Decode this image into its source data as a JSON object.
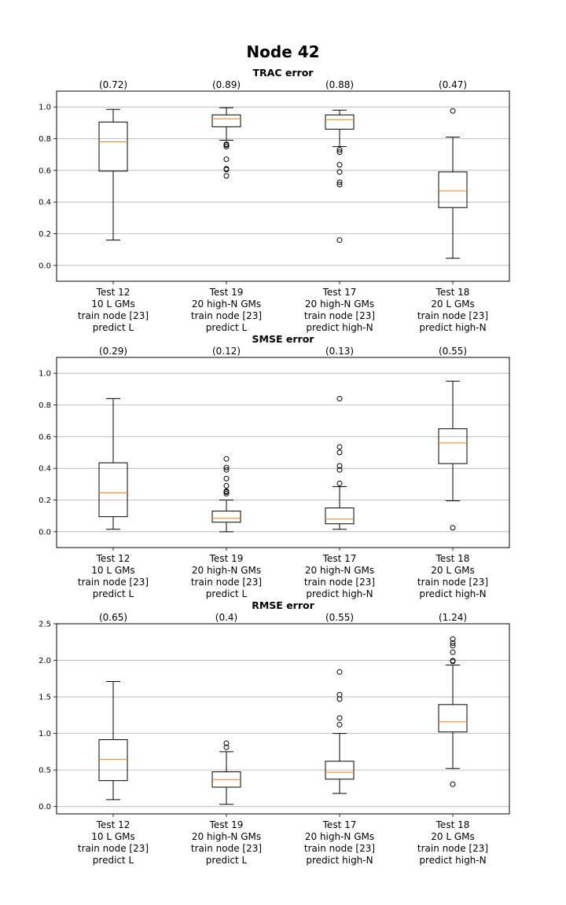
{
  "figure": {
    "title": "Node 42"
  },
  "colors": {
    "median": "#ff7f0e",
    "box": "#000000",
    "grid": "#b0b0b0",
    "axes": "#000000"
  },
  "chart_data": [
    {
      "type": "box",
      "title": "TRAC error",
      "xlabel": "",
      "ylabel": "",
      "ylim": [
        -0.1,
        1.1
      ],
      "yticks": [
        0.0,
        0.2,
        0.4,
        0.6,
        0.8,
        1.0
      ],
      "ytick_labels": [
        "0.0",
        "0.2",
        "0.4",
        "0.6",
        "0.8",
        "1.0"
      ],
      "grid": "y",
      "categories": [
        [
          "Test 12",
          "10 L GMs",
          "train node [23]",
          "predict L"
        ],
        [
          "Test 19",
          "20 high-N GMs",
          "train node [23]",
          "predict L"
        ],
        [
          "Test 17",
          "20 high-N GMs",
          "train node [23]",
          "predict high-N"
        ],
        [
          "Test 18",
          "20 L GMs",
          "train node [23]",
          "predict high-N"
        ]
      ],
      "mean_labels": [
        "(0.72)",
        "(0.89)",
        "(0.88)",
        "(0.47)"
      ],
      "boxes": [
        {
          "whisker_low": 0.16,
          "q1": 0.595,
          "median": 0.78,
          "q3": 0.905,
          "whisker_high": 0.985,
          "outliers": []
        },
        {
          "whisker_low": 0.79,
          "q1": 0.875,
          "median": 0.925,
          "q3": 0.95,
          "whisker_high": 0.995,
          "outliers": [
            0.565,
            0.605,
            0.61,
            0.67,
            0.75,
            0.76,
            0.765
          ]
        },
        {
          "whisker_low": 0.75,
          "q1": 0.86,
          "median": 0.92,
          "q3": 0.95,
          "whisker_high": 0.98,
          "outliers": [
            0.16,
            0.51,
            0.525,
            0.59,
            0.635,
            0.715,
            0.73
          ]
        },
        {
          "whisker_low": 0.045,
          "q1": 0.365,
          "median": 0.47,
          "q3": 0.59,
          "whisker_high": 0.81,
          "outliers": [
            0.975
          ]
        }
      ]
    },
    {
      "type": "box",
      "title": "SMSE error",
      "xlabel": "",
      "ylabel": "",
      "ylim": [
        -0.1,
        1.1
      ],
      "yticks": [
        0.0,
        0.2,
        0.4,
        0.6,
        0.8,
        1.0
      ],
      "ytick_labels": [
        "0.0",
        "0.2",
        "0.4",
        "0.6",
        "0.8",
        "1.0"
      ],
      "grid": "y",
      "categories": [
        [
          "Test 12",
          "10 L GMs",
          "train node [23]",
          "predict L"
        ],
        [
          "Test 19",
          "20 high-N GMs",
          "train node [23]",
          "predict L"
        ],
        [
          "Test 17",
          "20 high-N GMs",
          "train node [23]",
          "predict high-N"
        ],
        [
          "Test 18",
          "20 L GMs",
          "train node [23]",
          "predict high-N"
        ]
      ],
      "mean_labels": [
        "(0.29)",
        "(0.12)",
        "(0.13)",
        "(0.55)"
      ],
      "boxes": [
        {
          "whisker_low": 0.015,
          "q1": 0.095,
          "median": 0.245,
          "q3": 0.435,
          "whisker_high": 0.84,
          "outliers": []
        },
        {
          "whisker_low": 0.0,
          "q1": 0.06,
          "median": 0.085,
          "q3": 0.13,
          "whisker_high": 0.2,
          "outliers": [
            0.24,
            0.25,
            0.255,
            0.29,
            0.335,
            0.39,
            0.405,
            0.46
          ]
        },
        {
          "whisker_low": 0.015,
          "q1": 0.05,
          "median": 0.08,
          "q3": 0.15,
          "whisker_high": 0.285,
          "outliers": [
            0.305,
            0.39,
            0.415,
            0.5,
            0.535,
            0.84
          ]
        },
        {
          "whisker_low": 0.195,
          "q1": 0.43,
          "median": 0.56,
          "q3": 0.65,
          "whisker_high": 0.95,
          "outliers": [
            0.025
          ]
        }
      ]
    },
    {
      "type": "box",
      "title": "RMSE error",
      "xlabel": "",
      "ylabel": "",
      "ylim": [
        -0.1,
        2.5
      ],
      "yticks": [
        0.0,
        0.5,
        1.0,
        1.5,
        2.0,
        2.5
      ],
      "ytick_labels": [
        "0.0",
        "0.5",
        "1.0",
        "1.5",
        "2.0",
        "2.5"
      ],
      "grid": "y",
      "categories": [
        [
          "Test 12",
          "10 L GMs",
          "train node [23]",
          "predict L"
        ],
        [
          "Test 19",
          "20 high-N GMs",
          "train node [23]",
          "predict L"
        ],
        [
          "Test 17",
          "20 high-N GMs",
          "train node [23]",
          "predict high-N"
        ],
        [
          "Test 18",
          "20 L GMs",
          "train node [23]",
          "predict high-N"
        ]
      ],
      "mean_labels": [
        "(0.65)",
        "(0.4)",
        "(0.55)",
        "(1.24)"
      ],
      "boxes": [
        {
          "whisker_low": 0.095,
          "q1": 0.355,
          "median": 0.645,
          "q3": 0.915,
          "whisker_high": 1.71,
          "outliers": []
        },
        {
          "whisker_low": 0.03,
          "q1": 0.265,
          "median": 0.37,
          "q3": 0.475,
          "whisker_high": 0.75,
          "outliers": [
            0.81,
            0.865
          ]
        },
        {
          "whisker_low": 0.18,
          "q1": 0.375,
          "median": 0.47,
          "q3": 0.62,
          "whisker_high": 1.0,
          "outliers": [
            1.12,
            1.21,
            1.47,
            1.53,
            1.84
          ]
        },
        {
          "whisker_low": 0.52,
          "q1": 1.02,
          "median": 1.16,
          "q3": 1.395,
          "whisker_high": 1.935,
          "outliers": [
            0.305,
            1.985,
            1.995,
            2.11,
            2.2,
            2.235,
            2.29
          ]
        }
      ]
    }
  ]
}
